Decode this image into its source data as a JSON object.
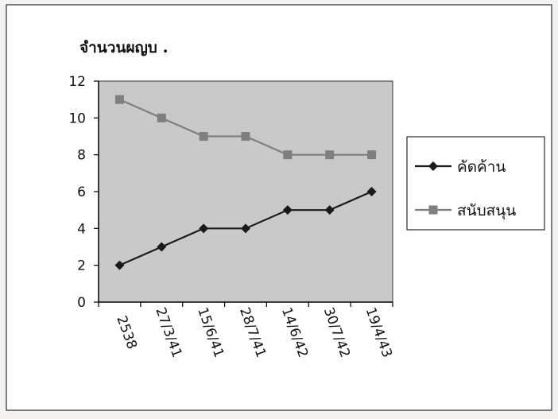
{
  "chart_data": {
    "type": "line",
    "ylabel": "จำนวนผญบ .",
    "categories": [
      "2538",
      "27/3/41",
      "15/6/41",
      "28/7/41",
      "14/6/42",
      "30/7/42",
      "19/4/43"
    ],
    "ylim": [
      0,
      12
    ],
    "yticks": [
      0,
      2,
      4,
      6,
      8,
      10,
      12
    ],
    "grid": false,
    "legend_position": "right",
    "series": [
      {
        "name": "คัดค้าน",
        "values": [
          2,
          3,
          4,
          4,
          5,
          5,
          6
        ],
        "color": "#1a1a1a",
        "marker": "diamond"
      },
      {
        "name": "สนับสนุน",
        "values": [
          11,
          10,
          9,
          9,
          8,
          8,
          8
        ],
        "color": "#7f7f7f",
        "marker": "square"
      }
    ]
  }
}
